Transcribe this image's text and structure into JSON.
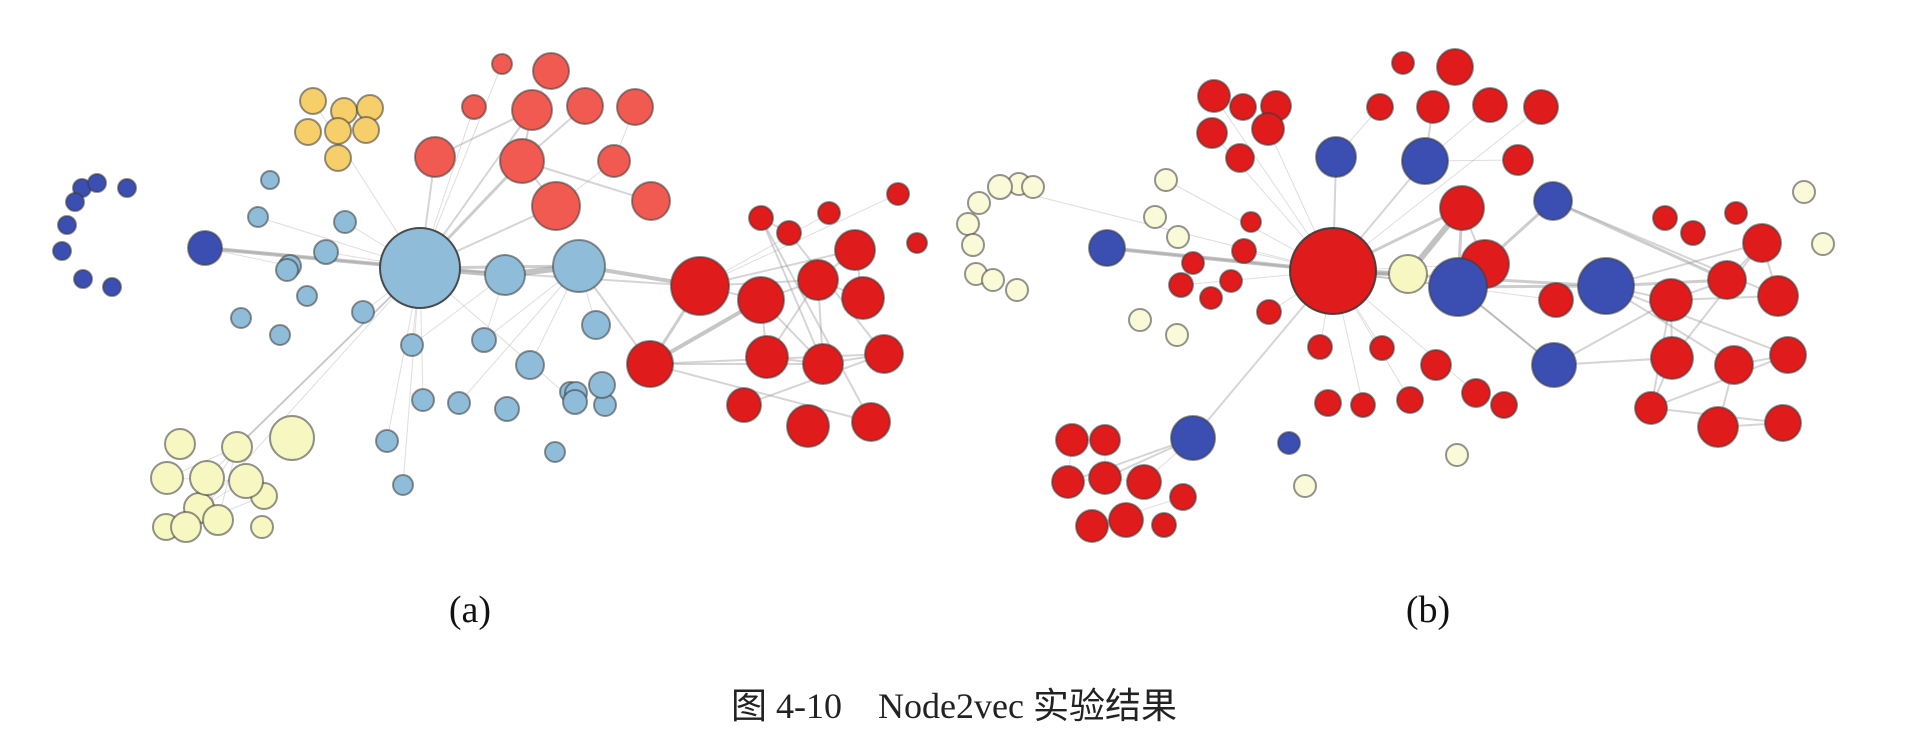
{
  "figure": {
    "caption": "图 4-10    Node2vec 实验结果",
    "panels": [
      {
        "id": "a",
        "label": "(a)",
        "layout": "homophily-colored communities"
      },
      {
        "id": "b",
        "label": "(b)",
        "layout": "structural-equivalence colored"
      }
    ]
  },
  "colors": {
    "steel_blue": "#8fbcd8",
    "dark_blue": "#3b4fb3",
    "red": "#e01b1b",
    "coral": "#f05a50",
    "yellow": "#f6cf6b",
    "cream": "#f7f7c2",
    "cream_light": "#fafad8",
    "edge": "#9a9a9a",
    "node_border": "#3a3a3a"
  }
}
